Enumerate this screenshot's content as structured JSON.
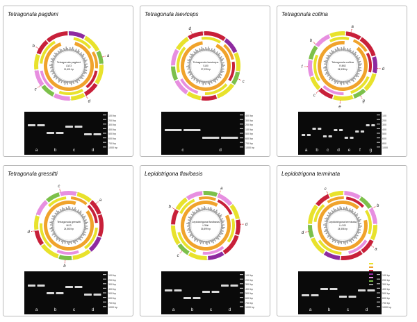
{
  "colors": {
    "gene_yellow": "#e8e22c",
    "gene_orange": "#f0a32c",
    "gene_red": "#c8203a",
    "gene_purple": "#8e2aa0",
    "gene_pink": "#e78fe0",
    "gene_green": "#7cc04a",
    "gc_gray": "#9a9a9a",
    "primer_red": "#d6242a",
    "gel_band": "#f2f2f2"
  },
  "panels": [
    {
      "title": "Tetragonula pagdeni",
      "center_name": "Tetragonula pagdeni",
      "center_id": "L3/13",
      "center_bp": "21,601 bp",
      "lanes": [
        "a",
        "b",
        "c",
        "d"
      ],
      "ladder": [
        "100 bp",
        "200 bp",
        "300 bp",
        "400 bp",
        "500 bp",
        "600 bp",
        "700 bp",
        "1000 bp"
      ],
      "markers": [
        "a",
        "b",
        "c",
        "d"
      ]
    },
    {
      "title": "Tetragonula laeviceps",
      "center_name": "Tetragonula laeviceps",
      "center_id": "S-8/0",
      "center_bp": "27,033 bp",
      "lanes": [
        "c",
        "d"
      ],
      "ladder": [
        "400 bp",
        "300 bp",
        "200 bp",
        "100 bp",
        "500 bp",
        "600 bp",
        "700 bp",
        "1000 bp"
      ],
      "markers": [
        "c",
        "d"
      ]
    },
    {
      "title": "Tetragonula collina",
      "center_name": "Tetragonula collina",
      "center_id": "R-8/62",
      "center_bp": "24,538 bp",
      "lanes": [
        "a",
        "b",
        "c",
        "d",
        "e",
        "f",
        "g"
      ],
      "ladder": [
        "100",
        "200",
        "300",
        "400",
        "500",
        "600",
        "800",
        "1000"
      ],
      "markers": [
        "g",
        "a",
        "b",
        "c",
        "d",
        "e",
        "f"
      ]
    },
    {
      "title": "Tetragonula gressitti",
      "center_name": "Tetragonula gressitti",
      "center_id": "M/13",
      "center_bp": "24,560 bp",
      "lanes": [
        "a",
        "b",
        "c",
        "d"
      ],
      "ladder": [
        "100 bp",
        "200 bp",
        "300 bp",
        "400 bp",
        "500 bp",
        "600 bp",
        "700 bp",
        "1000 bp"
      ],
      "markers": [
        "b",
        "a",
        "c",
        "d"
      ]
    },
    {
      "title": "Lepidotrigona flavibasis",
      "center_name": "Lepidotrigona flavibasis",
      "center_id": "L/3Mr/",
      "center_bp": "26,899 bp",
      "lanes": [
        "a",
        "b",
        "c",
        "d"
      ],
      "ladder": [
        "100 bp",
        "200 bp",
        "300 bp",
        "400 bp",
        "500 bp",
        "600 bp",
        "700 bp",
        "1000 bp"
      ],
      "markers": [
        "c",
        "d",
        "a",
        "b"
      ]
    },
    {
      "title": "Lepidotrigona terminata",
      "center_name": "Lepidotrigona terminata",
      "center_id": "LL/100",
      "center_bp": "24,556 bp",
      "lanes": [
        "a",
        "b",
        "c",
        "d"
      ],
      "ladder": [
        "100 bp",
        "200 bp",
        "300 bp",
        "400 bp",
        "500 bp",
        "600 bp",
        "700 bp",
        "1000 bp"
      ],
      "markers": [
        "d",
        "a",
        "b",
        "c"
      ],
      "legend": true
    }
  ]
}
